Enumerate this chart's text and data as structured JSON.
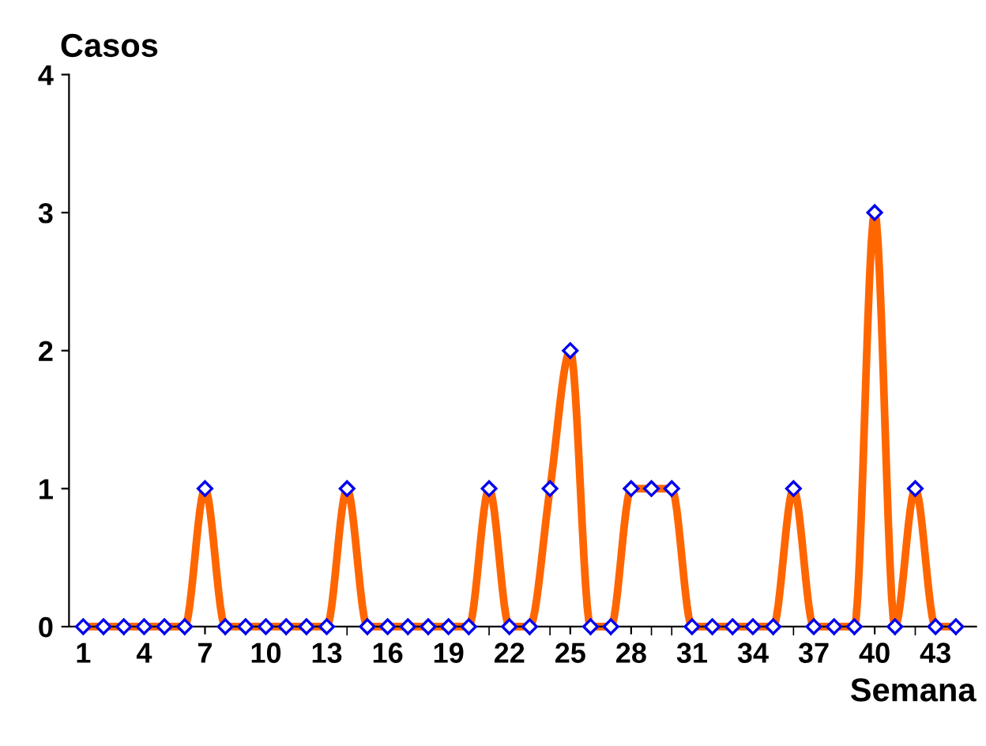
{
  "chart_data": {
    "type": "line",
    "xlabel": "Semana",
    "ylabel": "Casos",
    "x": [
      1,
      2,
      3,
      4,
      5,
      6,
      7,
      8,
      9,
      10,
      11,
      12,
      13,
      14,
      15,
      16,
      17,
      18,
      19,
      20,
      21,
      22,
      23,
      24,
      25,
      26,
      27,
      28,
      29,
      30,
      31,
      32,
      33,
      34,
      35,
      36,
      37,
      38,
      39,
      40,
      41,
      42,
      43,
      44
    ],
    "series": [
      {
        "color": "#ff6600",
        "values": [
          0,
          0,
          0,
          0,
          0,
          0,
          1,
          0,
          0,
          0,
          0,
          0,
          0,
          1,
          0,
          0,
          0,
          0,
          0,
          0,
          1,
          0,
          0,
          1,
          2,
          0,
          0,
          1,
          1,
          1,
          0,
          0,
          0,
          0,
          0,
          1,
          0,
          0,
          0,
          3,
          0,
          1,
          0,
          0
        ]
      }
    ],
    "xlim": [
      0.3,
      45
    ],
    "xticks": [
      1,
      4,
      7,
      10,
      13,
      16,
      19,
      22,
      25,
      28,
      31,
      34,
      37,
      40,
      43
    ],
    "ylim": [
      0,
      4
    ],
    "yticks": [
      0,
      1,
      2,
      3,
      4
    ],
    "marker": "diamond",
    "line_style": "solid",
    "grid": false,
    "legend": false
  }
}
